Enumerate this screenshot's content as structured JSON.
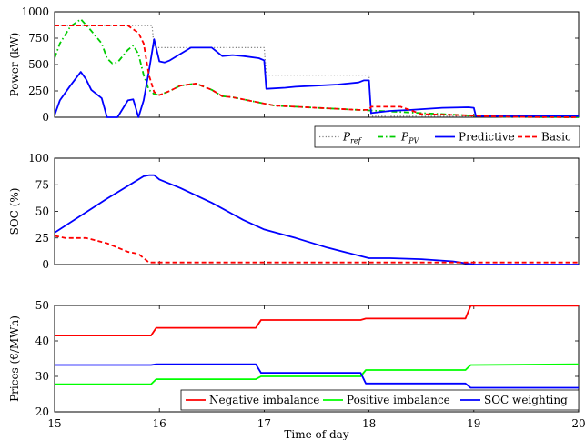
{
  "chart_data": [
    {
      "type": "line",
      "ylabel": "Power (kW)",
      "xlim": [
        15,
        20
      ],
      "ylim": [
        0,
        1000
      ],
      "yticks": [
        "0",
        "250",
        "500",
        "750",
        "1000"
      ],
      "grid": false,
      "legend_position": "bottom-right",
      "series": [
        {
          "name": "P_ref",
          "legend_base": "P",
          "legend_sub": "ref",
          "color": "#7f7f7f",
          "style": "dotted",
          "x": [
            15,
            15.93,
            15.95,
            17.0,
            17.02,
            18.0,
            18.02,
            20.0
          ],
          "y": [
            870,
            870,
            660,
            660,
            400,
            400,
            10,
            10
          ]
        },
        {
          "name": "P_PV",
          "legend_base": "P",
          "legend_sub": "PV",
          "color": "#00cc00",
          "style": "dashdot",
          "x": [
            15,
            15.05,
            15.15,
            15.25,
            15.35,
            15.45,
            15.5,
            15.55,
            15.6,
            15.7,
            15.75,
            15.8,
            15.85,
            15.9,
            15.95,
            16.0,
            16.1,
            16.2,
            16.35,
            16.5,
            16.6,
            16.7,
            16.9,
            17.1,
            17.3,
            17.5,
            17.7,
            17.9,
            18.1,
            18.3,
            18.5,
            18.7,
            18.9,
            19.1,
            19.3,
            19.6,
            20.0
          ],
          "y": [
            560,
            700,
            860,
            930,
            820,
            700,
            560,
            510,
            520,
            640,
            680,
            600,
            400,
            260,
            220,
            210,
            250,
            300,
            320,
            260,
            200,
            190,
            150,
            110,
            100,
            90,
            80,
            70,
            60,
            50,
            40,
            30,
            20,
            10,
            5,
            2,
            0
          ]
        },
        {
          "name": "Predictive",
          "color": "#0000ff",
          "style": "solid",
          "x": [
            15,
            15.05,
            15.15,
            15.25,
            15.3,
            15.35,
            15.45,
            15.5,
            15.6,
            15.7,
            15.75,
            15.8,
            15.85,
            15.9,
            15.95,
            16.0,
            16.05,
            16.1,
            16.2,
            16.3,
            16.5,
            16.6,
            16.7,
            16.8,
            16.95,
            17.0,
            17.02,
            17.2,
            17.3,
            17.5,
            17.7,
            17.9,
            17.95,
            18.0,
            18.02,
            18.2,
            18.4,
            18.7,
            18.95,
            19.0,
            19.02,
            20.0
          ],
          "y": [
            20,
            160,
            300,
            430,
            360,
            260,
            180,
            0,
            0,
            160,
            170,
            0,
            160,
            440,
            740,
            530,
            520,
            540,
            600,
            660,
            660,
            580,
            590,
            580,
            560,
            540,
            270,
            280,
            290,
            300,
            310,
            330,
            350,
            350,
            40,
            60,
            70,
            90,
            95,
            90,
            10,
            10
          ]
        },
        {
          "name": "Basic",
          "color": "#ff0000",
          "style": "dashed",
          "x": [
            15,
            15.7,
            15.8,
            15.85,
            15.9,
            15.95,
            16.0,
            16.1,
            16.2,
            16.35,
            16.5,
            16.6,
            16.7,
            16.9,
            17.1,
            17.3,
            17.5,
            17.7,
            17.9,
            18.0,
            18.02,
            18.3,
            18.5,
            18.7,
            18.9,
            19.1,
            19.3,
            19.6,
            20.0
          ],
          "y": [
            870,
            870,
            800,
            700,
            400,
            240,
            210,
            250,
            300,
            320,
            260,
            200,
            190,
            150,
            110,
            100,
            90,
            80,
            70,
            70,
            100,
            100,
            30,
            25,
            20,
            10,
            5,
            2,
            0
          ]
        }
      ]
    },
    {
      "type": "line",
      "ylabel": "SOC (%)",
      "xlim": [
        15,
        20
      ],
      "ylim": [
        0,
        100
      ],
      "yticks": [
        "0",
        "25",
        "50",
        "75",
        "100"
      ],
      "grid": false,
      "series": [
        {
          "name": "Predictive",
          "color": "#0000ff",
          "style": "solid",
          "x": [
            15,
            15.5,
            15.85,
            15.9,
            15.95,
            16.0,
            16.2,
            16.5,
            16.8,
            17.0,
            17.3,
            17.6,
            18.0,
            18.2,
            18.5,
            18.8,
            19.0,
            20.0
          ],
          "y": [
            30,
            62,
            83,
            84,
            84,
            80,
            72,
            58,
            42,
            33,
            25,
            16,
            6,
            6,
            5,
            3,
            0,
            0
          ]
        },
        {
          "name": "Basic",
          "color": "#ff0000",
          "style": "dashed",
          "x": [
            15,
            15.1,
            15.3,
            15.5,
            15.7,
            15.8,
            15.9,
            15.95,
            20.0
          ],
          "y": [
            27,
            25,
            25,
            20,
            12,
            10,
            2,
            2,
            2
          ]
        }
      ]
    },
    {
      "type": "line",
      "ylabel": "Prices (€/MWh)",
      "xlabel": "Time of day",
      "xlim": [
        15,
        20
      ],
      "ylim": [
        20,
        50
      ],
      "xticks": [
        "15",
        "16",
        "17",
        "18",
        "19",
        "20"
      ],
      "yticks": [
        "20",
        "30",
        "40",
        "50"
      ],
      "grid": false,
      "legend_position": "bottom",
      "series": [
        {
          "name": "Negative imbalance",
          "color": "#ff0000",
          "style": "solid",
          "x": [
            15,
            15.92,
            15.97,
            16.92,
            16.97,
            17.92,
            17.97,
            18.92,
            18.97,
            20.0
          ],
          "y": [
            41.5,
            41.5,
            43.7,
            43.7,
            45.9,
            45.9,
            46.3,
            46.3,
            49.9,
            49.9
          ]
        },
        {
          "name": "Positive imbalance",
          "color": "#00ff00",
          "style": "solid",
          "x": [
            15,
            15.92,
            15.97,
            16.92,
            16.97,
            17.92,
            17.97,
            18.92,
            18.97,
            20.0
          ],
          "y": [
            27.8,
            27.8,
            29.2,
            29.2,
            30.0,
            30.0,
            31.8,
            31.8,
            33.2,
            33.4
          ]
        },
        {
          "name": "SOC weighting",
          "color": "#0000ff",
          "style": "solid",
          "x": [
            15,
            15.92,
            15.97,
            16.92,
            16.97,
            17.92,
            17.97,
            18.92,
            18.97,
            20.0
          ],
          "y": [
            33.2,
            33.2,
            33.4,
            33.4,
            31.0,
            31.0,
            28.0,
            28.0,
            26.8,
            26.8
          ]
        }
      ]
    }
  ]
}
